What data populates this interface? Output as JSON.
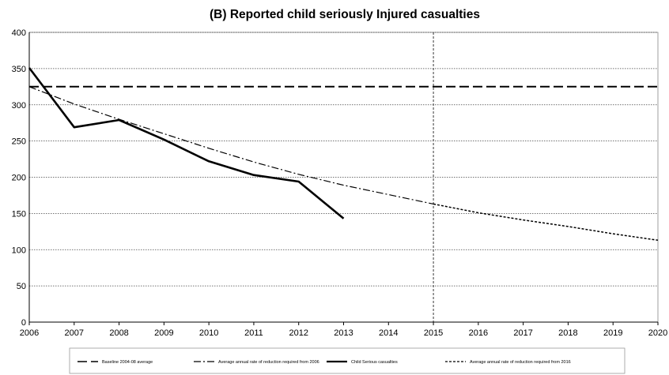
{
  "chart_data": {
    "type": "line",
    "title": "(B) Reported child seriously Injured casualties",
    "xlabel": "",
    "ylabel": "",
    "x": [
      2006,
      2007,
      2008,
      2009,
      2010,
      2011,
      2012,
      2013,
      2014,
      2015,
      2016,
      2017,
      2018,
      2019,
      2020
    ],
    "xlim": [
      2006,
      2020
    ],
    "ylim": [
      0,
      400
    ],
    "yticks": [
      0,
      50,
      100,
      150,
      200,
      250,
      300,
      350,
      400
    ],
    "grid": "horizontal dotted",
    "vertical_marker_x": 2015,
    "legend_position": "bottom",
    "series": [
      {
        "name": "Baseline 2004-08 average",
        "style": "long-dash",
        "points": [
          [
            2006,
            325
          ],
          [
            2020,
            325
          ]
        ]
      },
      {
        "name": "Average annual rate of reduction required from 2006",
        "style": "dash-dot",
        "points": [
          [
            2006,
            325
          ],
          [
            2007,
            301
          ],
          [
            2008,
            280
          ],
          [
            2009,
            260
          ],
          [
            2010,
            240
          ],
          [
            2011,
            221
          ],
          [
            2012,
            204
          ],
          [
            2013,
            189
          ],
          [
            2014,
            176
          ],
          [
            2015,
            163
          ]
        ]
      },
      {
        "name": "Child Serious casualties",
        "style": "solid-thick",
        "points": [
          [
            2006,
            351
          ],
          [
            2007,
            269
          ],
          [
            2008,
            279
          ],
          [
            2009,
            252
          ],
          [
            2010,
            222
          ],
          [
            2011,
            203
          ],
          [
            2012,
            194
          ],
          [
            2013,
            143
          ]
        ]
      },
      {
        "name": "Average annual rate of reduction required from 2016",
        "style": "short-dash",
        "points": [
          [
            2015,
            163
          ],
          [
            2016,
            151
          ],
          [
            2017,
            141
          ],
          [
            2018,
            132
          ],
          [
            2019,
            122
          ],
          [
            2020,
            113
          ]
        ]
      }
    ]
  }
}
